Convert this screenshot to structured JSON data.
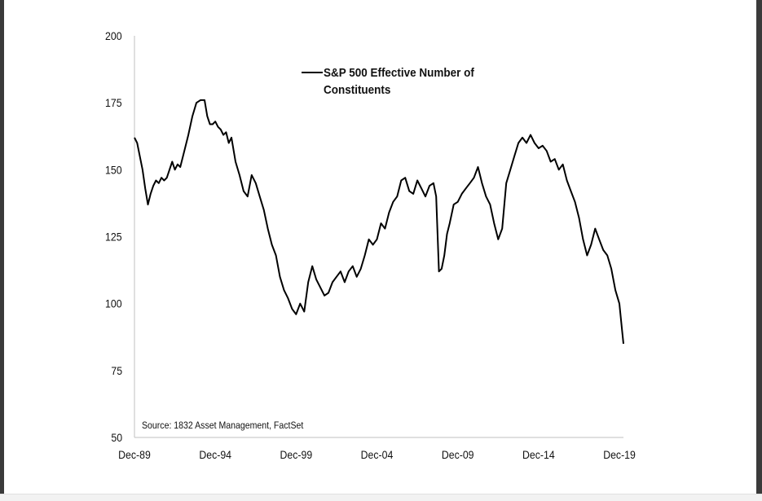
{
  "chart_data": {
    "type": "line",
    "title": "",
    "xlabel": "",
    "ylabel": "",
    "ylim": [
      50,
      200
    ],
    "yticks": [
      "50",
      "75",
      "100",
      "125",
      "150",
      "175",
      "200"
    ],
    "xticks": [
      "Dec-89",
      "Dec-94",
      "Dec-99",
      "Dec-04",
      "Dec-09",
      "Dec-14",
      "Dec-19"
    ],
    "xlim": [
      "1989-12",
      "2020-03"
    ],
    "grid": false,
    "legend_position": "top-center",
    "line_color": "#000000",
    "source": "Source: 1832 Asset Management, FactSet",
    "series": [
      {
        "name": "S&P 500 Effective Number of Constituents",
        "legend_line1": "S&P 500 Effective Number of",
        "legend_line2": "Constituents",
        "points": [
          [
            "1989-12",
            162
          ],
          [
            "1990-02",
            160
          ],
          [
            "1990-04",
            155
          ],
          [
            "1990-06",
            150
          ],
          [
            "1990-08",
            143
          ],
          [
            "1990-10",
            137
          ],
          [
            "1990-12",
            141
          ],
          [
            "1991-02",
            144
          ],
          [
            "1991-04",
            146
          ],
          [
            "1991-06",
            145
          ],
          [
            "1991-08",
            147
          ],
          [
            "1991-10",
            146
          ],
          [
            "1991-12",
            147
          ],
          [
            "1992-02",
            150
          ],
          [
            "1992-04",
            153
          ],
          [
            "1992-06",
            150
          ],
          [
            "1992-08",
            152
          ],
          [
            "1992-10",
            151
          ],
          [
            "1993-01",
            157
          ],
          [
            "1993-04",
            163
          ],
          [
            "1993-07",
            170
          ],
          [
            "1993-10",
            175
          ],
          [
            "1994-01",
            176
          ],
          [
            "1994-04",
            176
          ],
          [
            "1994-06",
            170
          ],
          [
            "1994-08",
            167
          ],
          [
            "1994-10",
            167
          ],
          [
            "1994-12",
            168
          ],
          [
            "1995-02",
            166
          ],
          [
            "1995-04",
            165
          ],
          [
            "1995-06",
            163
          ],
          [
            "1995-08",
            164
          ],
          [
            "1995-10",
            160
          ],
          [
            "1995-12",
            162
          ],
          [
            "1996-03",
            153
          ],
          [
            "1996-06",
            148
          ],
          [
            "1996-09",
            142
          ],
          [
            "1996-12",
            140
          ],
          [
            "1997-03",
            148
          ],
          [
            "1997-06",
            145
          ],
          [
            "1997-09",
            140
          ],
          [
            "1997-12",
            135
          ],
          [
            "1998-03",
            128
          ],
          [
            "1998-06",
            122
          ],
          [
            "1998-09",
            118
          ],
          [
            "1998-12",
            110
          ],
          [
            "1999-03",
            105
          ],
          [
            "1999-06",
            102
          ],
          [
            "1999-09",
            98
          ],
          [
            "1999-12",
            96
          ],
          [
            "2000-03",
            100
          ],
          [
            "2000-06",
            97
          ],
          [
            "2000-09",
            108
          ],
          [
            "2000-12",
            114
          ],
          [
            "2001-03",
            109
          ],
          [
            "2001-06",
            106
          ],
          [
            "2001-09",
            103
          ],
          [
            "2001-12",
            104
          ],
          [
            "2002-03",
            108
          ],
          [
            "2002-06",
            110
          ],
          [
            "2002-09",
            112
          ],
          [
            "2002-12",
            108
          ],
          [
            "2003-03",
            112
          ],
          [
            "2003-06",
            114
          ],
          [
            "2003-09",
            110
          ],
          [
            "2003-12",
            113
          ],
          [
            "2004-03",
            118
          ],
          [
            "2004-06",
            124
          ],
          [
            "2004-09",
            122
          ],
          [
            "2004-12",
            124
          ],
          [
            "2005-03",
            130
          ],
          [
            "2005-06",
            128
          ],
          [
            "2005-09",
            134
          ],
          [
            "2005-12",
            138
          ],
          [
            "2006-03",
            140
          ],
          [
            "2006-06",
            146
          ],
          [
            "2006-09",
            147
          ],
          [
            "2006-12",
            142
          ],
          [
            "2007-03",
            141
          ],
          [
            "2007-06",
            146
          ],
          [
            "2007-09",
            143
          ],
          [
            "2007-12",
            140
          ],
          [
            "2008-03",
            144
          ],
          [
            "2008-06",
            145
          ],
          [
            "2008-08",
            140
          ],
          [
            "2008-10",
            112
          ],
          [
            "2008-12",
            113
          ],
          [
            "2009-02",
            118
          ],
          [
            "2009-04",
            126
          ],
          [
            "2009-06",
            130
          ],
          [
            "2009-09",
            137
          ],
          [
            "2009-12",
            138
          ],
          [
            "2010-03",
            141
          ],
          [
            "2010-06",
            143
          ],
          [
            "2010-09",
            145
          ],
          [
            "2010-12",
            147
          ],
          [
            "2011-03",
            151
          ],
          [
            "2011-06",
            145
          ],
          [
            "2011-09",
            140
          ],
          [
            "2011-12",
            137
          ],
          [
            "2012-03",
            130
          ],
          [
            "2012-06",
            124
          ],
          [
            "2012-09",
            128
          ],
          [
            "2012-12",
            145
          ],
          [
            "2013-03",
            150
          ],
          [
            "2013-06",
            155
          ],
          [
            "2013-09",
            160
          ],
          [
            "2013-12",
            162
          ],
          [
            "2014-03",
            160
          ],
          [
            "2014-06",
            163
          ],
          [
            "2014-09",
            160
          ],
          [
            "2014-12",
            158
          ],
          [
            "2015-03",
            159
          ],
          [
            "2015-06",
            157
          ],
          [
            "2015-09",
            153
          ],
          [
            "2015-12",
            154
          ],
          [
            "2016-03",
            150
          ],
          [
            "2016-06",
            152
          ],
          [
            "2016-09",
            146
          ],
          [
            "2016-12",
            142
          ],
          [
            "2017-03",
            138
          ],
          [
            "2017-06",
            132
          ],
          [
            "2017-09",
            124
          ],
          [
            "2017-12",
            118
          ],
          [
            "2018-03",
            122
          ],
          [
            "2018-06",
            128
          ],
          [
            "2018-09",
            124
          ],
          [
            "2018-12",
            120
          ],
          [
            "2019-03",
            118
          ],
          [
            "2019-06",
            113
          ],
          [
            "2019-09",
            105
          ],
          [
            "2019-12",
            100
          ],
          [
            "2020-02",
            90
          ],
          [
            "2020-03",
            85
          ]
        ]
      }
    ]
  }
}
